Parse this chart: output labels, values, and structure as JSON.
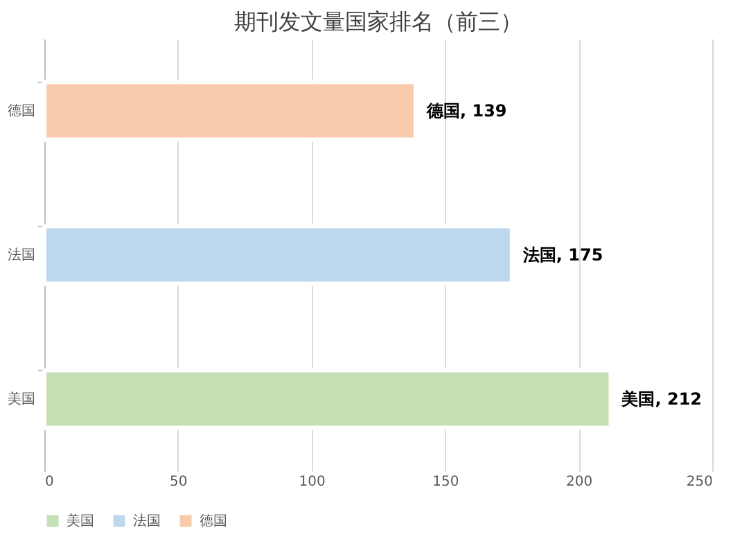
{
  "chart_data": {
    "type": "bar",
    "orientation": "horizontal",
    "title": "期刊发文量国家排名（前三）",
    "categories": [
      "德国",
      "法国",
      "美国"
    ],
    "series": [
      {
        "name": "美国",
        "color": "#c5e0b4",
        "values": [
          null,
          null,
          212
        ],
        "value_labels": [
          null,
          null,
          "美国, 212"
        ]
      },
      {
        "name": "法国",
        "color": "#bdd7ee",
        "values": [
          null,
          175,
          null
        ],
        "value_labels": [
          null,
          "法国, 175",
          null
        ]
      },
      {
        "name": "德国",
        "color": "#f8cbad",
        "values": [
          139,
          null,
          null
        ],
        "value_labels": [
          "德国, 139",
          null,
          null
        ]
      }
    ],
    "xlim": [
      0,
      250
    ],
    "xticks": [
      0,
      50,
      100,
      150,
      200,
      250
    ],
    "grid": "x",
    "legend": "bottom"
  }
}
